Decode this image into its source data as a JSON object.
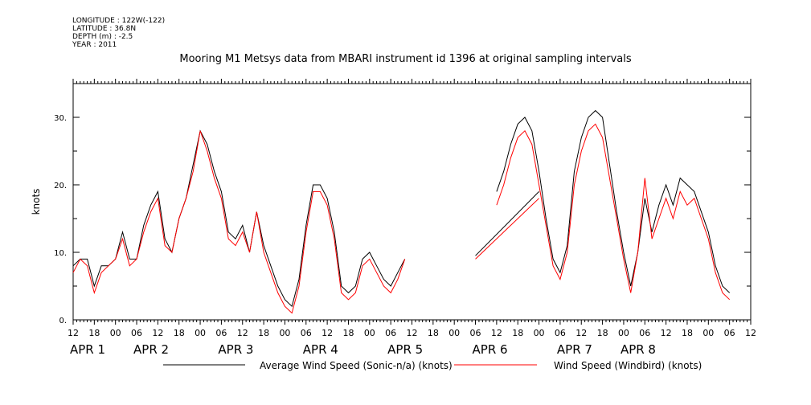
{
  "meta": {
    "longitude": "LONGITUDE : 122W(-122)",
    "latitude": "LATITUDE : 36.8N",
    "depth": "DEPTH (m) : -2.5",
    "year": "YEAR : 2011"
  },
  "chart_data": {
    "type": "line",
    "title": "Mooring M1 Metsys data from MBARI instrument id 1396 at original sampling intervals",
    "ylabel": "knots",
    "xlabel": "",
    "ylim": [
      0,
      35
    ],
    "yticks": [
      0,
      10,
      20,
      30
    ],
    "ytick_labels": [
      "0.",
      "10.",
      "20.",
      "30."
    ],
    "x_unit": "hours since APR 1 00:00",
    "xlim": [
      -12,
      180
    ],
    "hour_ticks": [
      {
        "x": -12,
        "label": "12"
      },
      {
        "x": -6,
        "label": "18"
      },
      {
        "x": 0,
        "label": "00"
      },
      {
        "x": 6,
        "label": "06"
      },
      {
        "x": 12,
        "label": "12"
      },
      {
        "x": 18,
        "label": "18"
      },
      {
        "x": 24,
        "label": "00"
      },
      {
        "x": 30,
        "label": "06"
      },
      {
        "x": 36,
        "label": "12"
      },
      {
        "x": 42,
        "label": "18"
      },
      {
        "x": 48,
        "label": "00"
      },
      {
        "x": 54,
        "label": "06"
      },
      {
        "x": 60,
        "label": "12"
      },
      {
        "x": 66,
        "label": "18"
      },
      {
        "x": 72,
        "label": "00"
      },
      {
        "x": 78,
        "label": "06"
      },
      {
        "x": 84,
        "label": "12"
      },
      {
        "x": 90,
        "label": "18"
      },
      {
        "x": 96,
        "label": "00"
      },
      {
        "x": 102,
        "label": "06"
      },
      {
        "x": 108,
        "label": "12"
      },
      {
        "x": 114,
        "label": "18"
      },
      {
        "x": 120,
        "label": "00"
      },
      {
        "x": 126,
        "label": "06"
      },
      {
        "x": 132,
        "label": "12"
      },
      {
        "x": 138,
        "label": "18"
      },
      {
        "x": 144,
        "label": "00"
      },
      {
        "x": 150,
        "label": "06"
      },
      {
        "x": 156,
        "label": "12"
      },
      {
        "x": 162,
        "label": "18"
      },
      {
        "x": 168,
        "label": "00"
      },
      {
        "x": 174,
        "label": "06"
      },
      {
        "x": 180,
        "label": "12"
      }
    ],
    "day_labels": [
      {
        "x": -12,
        "label": "APR 1"
      },
      {
        "x": 6,
        "label": "APR 2"
      },
      {
        "x": 30,
        "label": "APR 3"
      },
      {
        "x": 54,
        "label": "APR 4"
      },
      {
        "x": 78,
        "label": "APR 5"
      },
      {
        "x": 102,
        "label": "APR 6"
      },
      {
        "x": 126,
        "label": "APR 7"
      },
      {
        "x": 144,
        "label": "APR 8"
      }
    ],
    "series": [
      {
        "name": "Average Wind Speed (Sonic-n/a) (knots)",
        "color": "#000000",
        "x": [
          -12,
          -10,
          -8,
          -6,
          -4,
          -2,
          0,
          2,
          4,
          6,
          8,
          10,
          12,
          14,
          16,
          18,
          20,
          22,
          24,
          26,
          28,
          30,
          32,
          34,
          36,
          38,
          40,
          42,
          44,
          46,
          48,
          50,
          52,
          54,
          56,
          58,
          60,
          62,
          64,
          66,
          68,
          70,
          72,
          74,
          76,
          78,
          80,
          82,
          84,
          86,
          88,
          90,
          92,
          94,
          96,
          98,
          100,
          102,
          104,
          106,
          108,
          110,
          112,
          114,
          116,
          118,
          120,
          122,
          124,
          126,
          128,
          130,
          132,
          134,
          136,
          138,
          140,
          142,
          144,
          146,
          148,
          150,
          152,
          154,
          156,
          158,
          160,
          162,
          164,
          166,
          168,
          170,
          172,
          174,
          176,
          178,
          180
        ],
        "y": [
          8,
          9,
          9,
          5,
          8,
          8,
          9,
          13,
          9,
          9,
          14,
          17,
          19,
          12,
          10,
          15,
          18,
          23,
          28,
          26,
          22,
          19,
          13,
          12,
          14,
          10,
          16,
          11,
          8,
          5,
          3,
          2,
          6,
          14,
          20,
          20,
          18,
          13,
          5,
          4,
          5,
          9,
          10,
          8,
          6,
          5,
          7,
          9,
          null,
          null,
          null,
          null,
          null,
          null,
          null,
          null,
          null,
          null,
          null,
          null,
          19,
          22,
          26,
          29,
          30,
          28,
          22,
          15,
          9,
          7,
          11,
          22,
          27,
          30,
          31,
          30,
          23,
          16,
          10,
          5,
          10,
          18,
          13,
          17,
          20,
          17,
          21,
          20,
          19,
          16,
          13,
          8,
          5,
          4,
          null,
          null,
          null
        ],
        "gap_bridge": [
          [
            102,
            9.5
          ],
          [
            120,
            19
          ]
        ]
      },
      {
        "name": "Wind Speed (Windbird) (knots)",
        "color": "#ff0000",
        "x": [
          -12,
          -10,
          -8,
          -6,
          -4,
          -2,
          0,
          2,
          4,
          6,
          8,
          10,
          12,
          14,
          16,
          18,
          20,
          22,
          24,
          26,
          28,
          30,
          32,
          34,
          36,
          38,
          40,
          42,
          44,
          46,
          48,
          50,
          52,
          54,
          56,
          58,
          60,
          62,
          64,
          66,
          68,
          70,
          72,
          74,
          76,
          78,
          80,
          82,
          84,
          86,
          88,
          90,
          92,
          94,
          96,
          98,
          100,
          102,
          104,
          106,
          108,
          110,
          112,
          114,
          116,
          118,
          120,
          122,
          124,
          126,
          128,
          130,
          132,
          134,
          136,
          138,
          140,
          142,
          144,
          146,
          148,
          150,
          152,
          154,
          156,
          158,
          160,
          162,
          164,
          166,
          168,
          170,
          172,
          174,
          176,
          178,
          180
        ],
        "y": [
          7,
          9,
          8,
          4,
          7,
          8,
          9,
          12,
          8,
          9,
          13,
          16,
          18,
          11,
          10,
          15,
          18,
          22,
          28,
          25,
          21,
          18,
          12,
          11,
          13,
          10,
          16,
          10,
          7,
          4,
          2,
          1,
          5,
          13,
          19,
          19,
          17,
          12,
          4,
          3,
          4,
          8,
          9,
          7,
          5,
          4,
          6,
          9,
          null,
          null,
          null,
          null,
          null,
          null,
          null,
          null,
          null,
          null,
          null,
          null,
          17,
          20,
          24,
          27,
          28,
          26,
          20,
          14,
          8,
          6,
          10,
          20,
          25,
          28,
          29,
          27,
          21,
          15,
          9,
          4,
          10,
          21,
          12,
          15,
          18,
          15,
          19,
          17,
          18,
          15,
          12,
          7,
          4,
          3,
          null,
          null,
          null
        ],
        "gap_bridge": [
          [
            102,
            9
          ],
          [
            120,
            18
          ]
        ]
      }
    ],
    "legend_position": "bottom"
  }
}
